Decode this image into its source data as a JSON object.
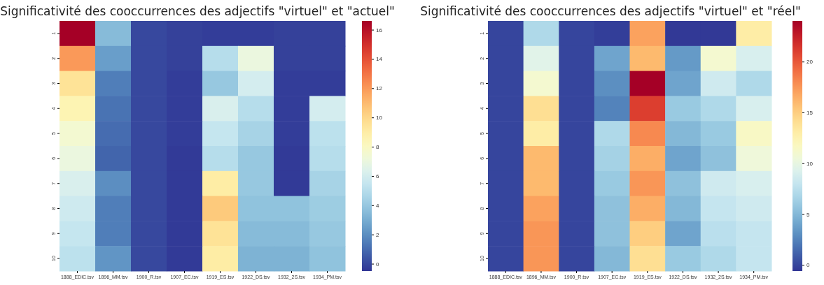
{
  "chart_data": [
    {
      "type": "heatmap",
      "title": "Significativité des cooccurrences des adjectifs \"virtuel\" et \"actuel\"",
      "categories": [
        "1888_EDIC.tsv",
        "1896_MM.tsv",
        "1900_R.tsv",
        "1907_EC.tsv",
        "1919_ES.tsv",
        "1922_DS.tsv",
        "1932_2S.tsv",
        "1934_PM.tsv"
      ],
      "y_categories": [
        "1",
        "2",
        "3",
        "4",
        "5",
        "6",
        "7",
        "8",
        "9",
        "10"
      ],
      "cells": [
        [
          16.6,
          3.5,
          0,
          -0.2,
          -0.3,
          -0.3,
          -0.2,
          -0.2
        ],
        [
          12,
          2.5,
          0,
          -0.2,
          5,
          7,
          -0.2,
          -0.2
        ],
        [
          9.5,
          1.5,
          0,
          -0.3,
          4,
          6,
          -0.3,
          -0.3
        ],
        [
          8.5,
          1.2,
          0,
          -0.3,
          6.2,
          5,
          -0.3,
          6
        ],
        [
          7.5,
          1,
          0,
          -0.3,
          5.5,
          4.5,
          -0.3,
          5.2
        ],
        [
          7,
          0.8,
          0,
          -0.4,
          5,
          4,
          -0.4,
          5
        ],
        [
          6.2,
          2,
          0,
          -0.4,
          9,
          4,
          -0.4,
          4.5
        ],
        [
          5.8,
          1.5,
          0,
          -0.4,
          10.5,
          3.8,
          3.8,
          4.2
        ],
        [
          5.5,
          1.5,
          0,
          -0.4,
          9.5,
          3.5,
          3.5,
          4
        ],
        [
          5.2,
          2.2,
          0,
          -0.4,
          9,
          3.2,
          3.2,
          3.8
        ]
      ],
      "clim": [
        -0.5,
        16.6
      ],
      "cticks": [
        0,
        2,
        4,
        6,
        8,
        10,
        12,
        14,
        16
      ]
    },
    {
      "type": "heatmap",
      "title": "Significativité des cooccurrences des adjectifs \"virtuel\" et \"réel\"",
      "categories": [
        "1888_EDIC.tsv",
        "1896_MM.tsv",
        "1900_R.tsv",
        "1907_EC.tsv",
        "1919_ES.tsv",
        "1922_DS.tsv",
        "1932_2S.tsv",
        "1934_PM.tsv"
      ],
      "y_categories": [
        "1",
        "2",
        "3",
        "4",
        "5",
        "6",
        "7",
        "8",
        "9",
        "10"
      ],
      "cells": [
        [
          0,
          7,
          0,
          -0.3,
          17,
          -0.5,
          -0.5,
          13
        ],
        [
          0,
          9.5,
          0,
          4,
          16,
          3.5,
          11,
          9
        ],
        [
          0,
          11,
          0,
          3,
          24,
          4,
          8.5,
          7
        ],
        [
          0,
          14,
          0,
          2.5,
          21,
          6,
          7,
          9
        ],
        [
          0,
          13,
          0,
          7,
          18,
          5,
          6,
          11.5
        ],
        [
          0,
          16,
          0,
          6.5,
          16.5,
          4,
          5.5,
          10.5
        ],
        [
          0,
          16,
          0,
          6,
          17.5,
          5.5,
          8.5,
          9
        ],
        [
          0,
          17,
          0,
          5.5,
          16.5,
          5,
          8,
          8.5
        ],
        [
          0,
          17.5,
          0,
          5.5,
          15,
          4,
          7.5,
          8
        ],
        [
          0,
          17.5,
          0,
          5,
          14,
          6,
          7,
          8
        ]
      ],
      "clim": [
        -0.6,
        24
      ],
      "cticks": [
        0,
        5,
        10,
        15,
        20
      ]
    }
  ]
}
